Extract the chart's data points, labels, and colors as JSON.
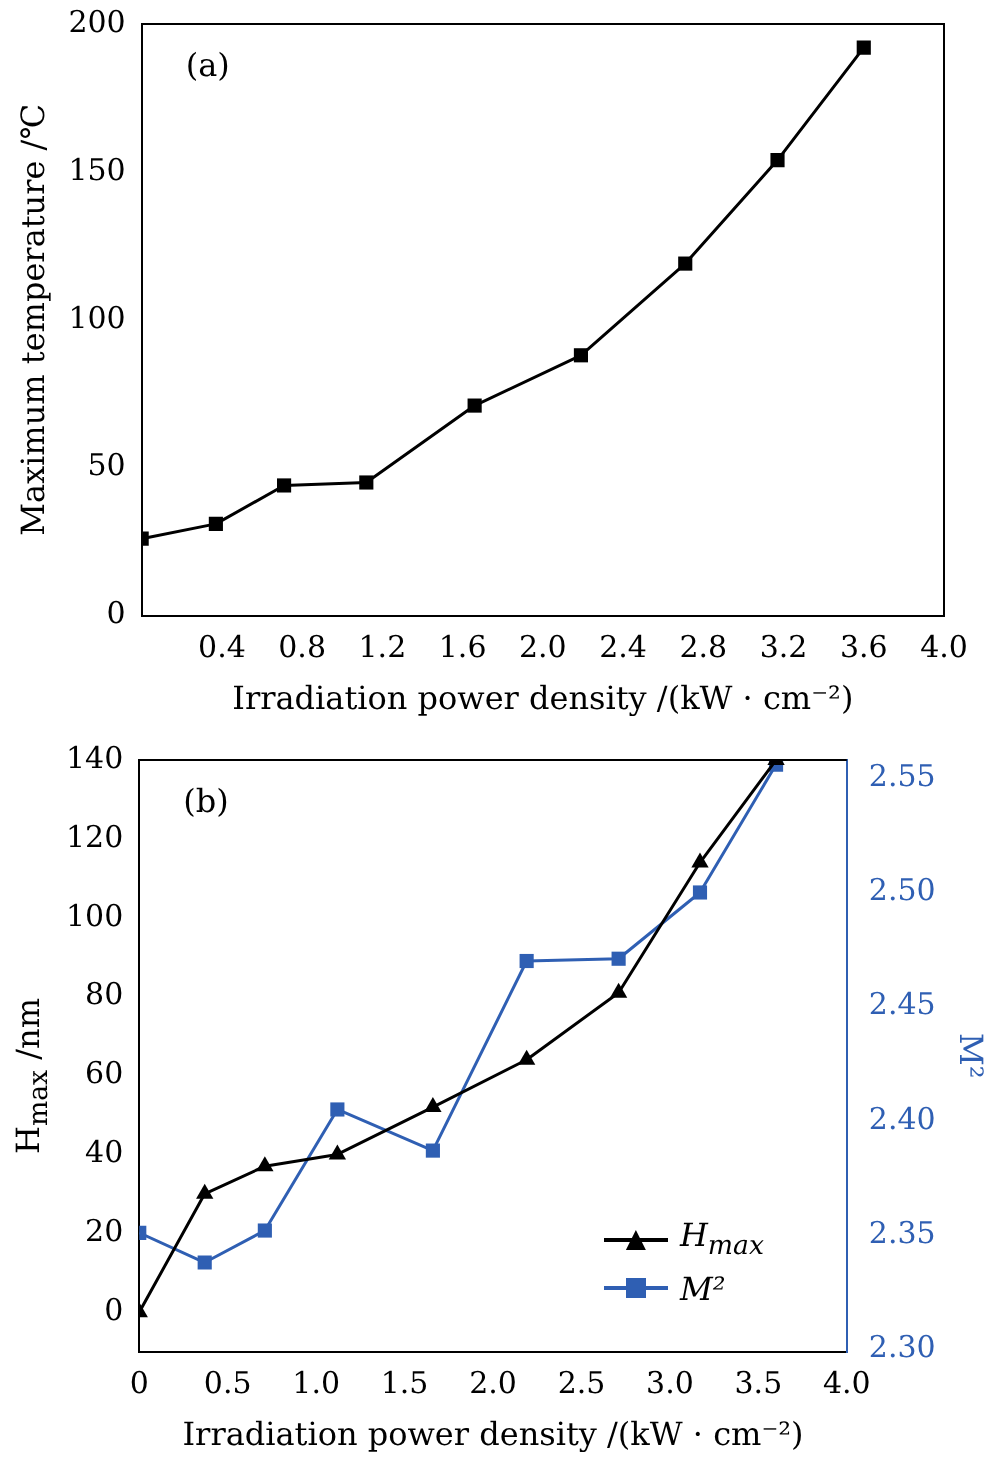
{
  "chart_data": [
    {
      "type": "line",
      "xlabel": "Irradiation power density /(kW · cm⁻²)",
      "ylabel": "Maximum temperature /℃",
      "annotations": [
        "(a)"
      ],
      "x": [
        0,
        0.37,
        0.71,
        1.12,
        1.66,
        2.19,
        2.71,
        3.17,
        3.6
      ],
      "series": [
        {
          "color": "#000000",
          "marker": "square",
          "values": [
            26,
            31,
            44,
            45,
            71,
            88,
            119,
            154,
            192
          ]
        }
      ],
      "xlim": [
        0,
        4
      ],
      "xticks": [
        0.4,
        0.8,
        1.2,
        1.6,
        {
          "value": 2,
          "label": "2.0"
        },
        2.4,
        2.8,
        3.2,
        3.6,
        {
          "value": 4,
          "label": "4.0"
        }
      ],
      "ylim": [
        0,
        200
      ],
      "yticks": [
        0,
        50,
        100,
        150,
        200
      ],
      "grid": false,
      "legend": false
    },
    {
      "type": "line",
      "xlabel": "Irradiation power density /(kW · cm⁻²)",
      "ylabel": "H$_{max}$ /nm",
      "y2label": "M²",
      "annotations": [
        "(b)"
      ],
      "x": [
        0,
        0.37,
        0.71,
        1.12,
        1.66,
        2.19,
        2.71,
        3.17,
        3.6
      ],
      "series": [
        {
          "name": "H$_{max}$",
          "color": "#000000",
          "marker": "triangle",
          "values": [
            0,
            30,
            37,
            40,
            52,
            64,
            81,
            114,
            140
          ]
        },
        {
          "name": "M²",
          "color": "#2f5fb3",
          "marker": "square",
          "axis": "y2",
          "values": [
            2.351,
            2.338,
            2.352,
            2.405,
            2.387,
            2.47,
            2.471,
            2.5,
            2.556
          ]
        }
      ],
      "xlim": [
        0,
        4
      ],
      "xticks": [
        0,
        0.5,
        {
          "value": 1,
          "label": "1.0"
        },
        1.5,
        {
          "value": 2,
          "label": "2.0"
        },
        2.5,
        {
          "value": 3,
          "label": "3.0"
        },
        3.5,
        {
          "value": 4,
          "label": "4.0"
        }
      ],
      "ylim": [
        -10,
        140
      ],
      "yticks": [
        0,
        20,
        40,
        60,
        80,
        100,
        120,
        140
      ],
      "y2lim": [
        2.299,
        2.558
      ],
      "y2ticks": [
        {
          "value": 2.3,
          "label": "2.30"
        },
        2.35,
        {
          "value": 2.4,
          "label": "2.40"
        },
        2.45,
        {
          "value": 2.5,
          "label": "2.50"
        },
        2.55
      ],
      "grid": false,
      "legend": "bottom right"
    }
  ]
}
